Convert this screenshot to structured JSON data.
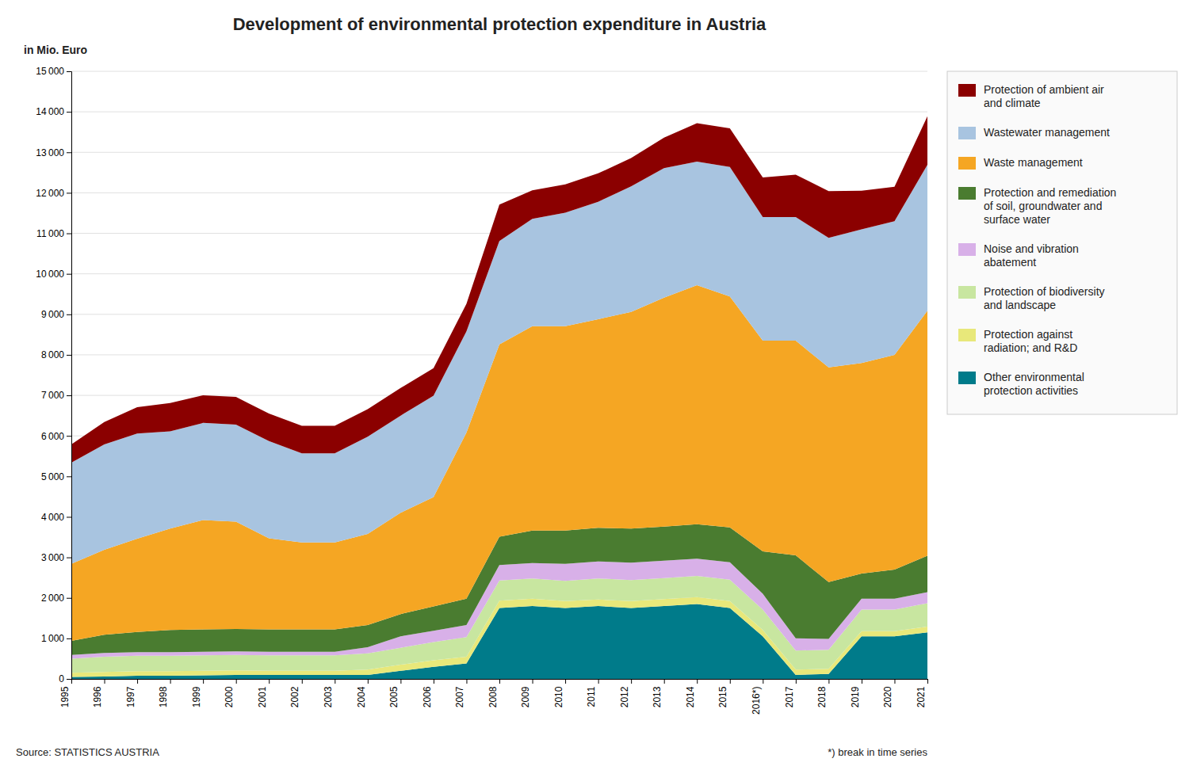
{
  "chart_data": {
    "type": "area",
    "stacked": true,
    "title": "Development of environmental protection expenditure in Austria",
    "ylabel": "in Mio. Euro",
    "annotations": [
      "Source: STATISTICS AUSTRIA",
      "*) break in time series"
    ],
    "categories": [
      "1995",
      "1996",
      "1997",
      "1998",
      "1999",
      "2000",
      "2001",
      "2002",
      "2003",
      "2004",
      "2005",
      "2006",
      "2007",
      "2008",
      "2009",
      "2010",
      "2011",
      "2012",
      "2013",
      "2014",
      "2015",
      "2016*)",
      "2017",
      "2018",
      "2019",
      "2020",
      "2021"
    ],
    "series": [
      {
        "name": "Other environmental protection activities",
        "color": "#007b8a",
        "values": [
          50,
          60,
          80,
          80,
          90,
          100,
          100,
          100,
          100,
          100,
          200,
          300,
          380,
          1750,
          1800,
          1750,
          1800,
          1750,
          1800,
          1850,
          1750,
          1050,
          100,
          120,
          1050,
          1050,
          1150
        ]
      },
      {
        "name": "Protection against radiation; and R&D",
        "color": "#e8e87a",
        "values": [
          100,
          110,
          110,
          110,
          110,
          110,
          100,
          100,
          100,
          130,
          150,
          160,
          170,
          180,
          180,
          170,
          160,
          170,
          170,
          170,
          170,
          160,
          130,
          130,
          130,
          130,
          140
        ]
      },
      {
        "name": "Protection of biodiversity and landscape",
        "color": "#c8e6a0",
        "values": [
          350,
          380,
          380,
          380,
          380,
          380,
          380,
          380,
          380,
          400,
          420,
          450,
          480,
          500,
          500,
          500,
          520,
          520,
          520,
          520,
          530,
          500,
          470,
          470,
          530,
          530,
          580
        ]
      },
      {
        "name": "Noise and vibration abatement",
        "color": "#d8b0e8",
        "values": [
          90,
          90,
          90,
          90,
          90,
          90,
          90,
          90,
          90,
          150,
          280,
          280,
          300,
          380,
          380,
          420,
          420,
          430,
          430,
          430,
          430,
          390,
          300,
          270,
          270,
          270,
          270
        ]
      },
      {
        "name": "Protection and remediation of soil, groundwater and surface water",
        "color": "#4a7c30",
        "values": [
          350,
          450,
          500,
          550,
          550,
          550,
          550,
          550,
          550,
          550,
          550,
          600,
          650,
          700,
          800,
          820,
          830,
          840,
          840,
          850,
          860,
          1050,
          2050,
          1400,
          620,
          720,
          900
        ]
      },
      {
        "name": "Waste management",
        "color": "#f5a623",
        "values": [
          1900,
          2100,
          2300,
          2500,
          2700,
          2650,
          2250,
          2150,
          2150,
          2250,
          2500,
          2700,
          4100,
          4750,
          5050,
          5050,
          5150,
          5350,
          5650,
          5900,
          5700,
          5200,
          5300,
          5300,
          5200,
          5300,
          6050
        ]
      },
      {
        "name": "Wastewater management",
        "color": "#a8c4e0",
        "values": [
          2500,
          2600,
          2600,
          2400,
          2400,
          2400,
          2400,
          2200,
          2200,
          2400,
          2400,
          2500,
          2500,
          2550,
          2650,
          2800,
          2900,
          3100,
          3200,
          3050,
          3200,
          3050,
          3050,
          3200,
          3300,
          3300,
          3600
        ]
      },
      {
        "name": "Protection of ambient air and climate",
        "color": "#8b0000",
        "values": [
          450,
          550,
          650,
          700,
          680,
          680,
          680,
          680,
          680,
          680,
          680,
          680,
          680,
          900,
          700,
          700,
          700,
          700,
          750,
          950,
          950,
          980,
          1050,
          1150,
          950,
          850,
          1200
        ]
      }
    ],
    "ylim": [
      0,
      15000
    ],
    "yticks": [
      0,
      {
        "value": 1000,
        "label": "1 000"
      },
      {
        "value": 2000,
        "label": "2 000"
      },
      {
        "value": 3000,
        "label": "3 000"
      },
      {
        "value": 4000,
        "label": "4 000"
      },
      {
        "value": 5000,
        "label": "5 000"
      },
      {
        "value": 6000,
        "label": "6 000"
      },
      {
        "value": 7000,
        "label": "7 000"
      },
      {
        "value": 8000,
        "label": "8 000"
      },
      {
        "value": 9000,
        "label": "9 000"
      },
      {
        "value": 10000,
        "label": "10 000"
      },
      {
        "value": 11000,
        "label": "11 000"
      },
      {
        "value": 12000,
        "label": "12 000"
      },
      {
        "value": 13000,
        "label": "13 000"
      },
      {
        "value": 14000,
        "label": "14 000"
      },
      {
        "value": 15000,
        "label": "15 000"
      }
    ],
    "grid": true,
    "legend": "right"
  }
}
